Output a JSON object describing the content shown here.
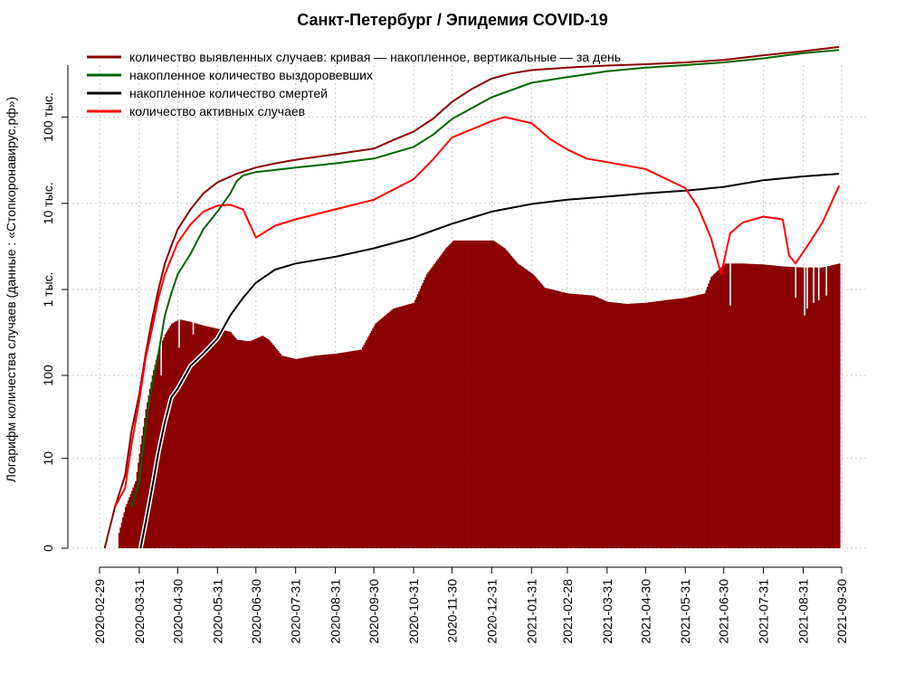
{
  "chart_data": {
    "type": "bar+line",
    "title": "Санкт-Петербург / Эпидемия COVID-19",
    "ylabel": "Логарифм количества случаев (данные : «Стопкоронавирус.рф»)",
    "xlabel": "",
    "yscale": "log10(1+y)",
    "ylim": [
      0,
      400000
    ],
    "xlim": [
      "2020-02-29",
      "2021-09-30"
    ],
    "grid": true,
    "legend_position": "top-left",
    "y_ticks": [
      {
        "value": 0,
        "label": "0"
      },
      {
        "value": 10,
        "label": "10"
      },
      {
        "value": 100,
        "label": "100"
      },
      {
        "value": 1000,
        "label": "1 тыс."
      },
      {
        "value": 10000,
        "label": "10 тыс."
      },
      {
        "value": 100000,
        "label": "100 тыс."
      }
    ],
    "x_ticks": [
      "2020-02-29",
      "2020-03-31",
      "2020-04-30",
      "2020-05-31",
      "2020-06-30",
      "2020-07-31",
      "2020-08-31",
      "2020-09-30",
      "2020-10-31",
      "2020-11-30",
      "2020-12-31",
      "2021-01-31",
      "2021-02-28",
      "2021-03-31",
      "2021-04-30",
      "2021-05-31",
      "2021-06-30",
      "2021-07-31",
      "2021-08-31",
      "2021-09-30"
    ],
    "bars": {
      "name": "количество выявленных случаев: кривая — накопленное, вертикальные — за день",
      "color": "#8B0000",
      "points": [
        [
          "2020-03-12",
          0
        ],
        [
          "2020-03-20",
          2
        ],
        [
          "2020-03-28",
          5
        ],
        [
          "2020-04-01",
          15
        ],
        [
          "2020-04-05",
          40
        ],
        [
          "2020-04-10",
          100
        ],
        [
          "2020-04-15",
          200
        ],
        [
          "2020-04-20",
          300
        ],
        [
          "2020-04-25",
          400
        ],
        [
          "2020-05-01",
          450
        ],
        [
          "2020-05-10",
          420
        ],
        [
          "2020-05-20",
          380
        ],
        [
          "2020-05-31",
          350
        ],
        [
          "2020-06-10",
          320
        ],
        [
          "2020-06-15",
          260
        ],
        [
          "2020-06-25",
          250
        ],
        [
          "2020-07-05",
          290
        ],
        [
          "2020-07-10",
          260
        ],
        [
          "2020-07-20",
          170
        ],
        [
          "2020-07-31",
          155
        ],
        [
          "2020-08-15",
          170
        ],
        [
          "2020-09-01",
          180
        ],
        [
          "2020-09-20",
          200
        ],
        [
          "2020-10-01",
          400
        ],
        [
          "2020-10-15",
          600
        ],
        [
          "2020-10-31",
          700
        ],
        [
          "2020-11-10",
          1500
        ],
        [
          "2020-11-25",
          3000
        ],
        [
          "2020-12-01",
          3700
        ],
        [
          "2021-01-01",
          3700
        ],
        [
          "2021-01-10",
          3000
        ],
        [
          "2021-01-20",
          2000
        ],
        [
          "2021-02-01",
          1500
        ],
        [
          "2021-02-10",
          1050
        ],
        [
          "2021-02-28",
          900
        ],
        [
          "2021-03-20",
          850
        ],
        [
          "2021-03-31",
          720
        ],
        [
          "2021-04-15",
          680
        ],
        [
          "2021-04-30",
          700
        ],
        [
          "2021-05-15",
          750
        ],
        [
          "2021-05-31",
          800
        ],
        [
          "2021-06-15",
          900
        ],
        [
          "2021-06-20",
          1400
        ],
        [
          "2021-07-01",
          2000
        ],
        [
          "2021-07-15",
          2000
        ],
        [
          "2021-07-31",
          1950
        ],
        [
          "2021-08-15",
          1850
        ],
        [
          "2021-08-31",
          1800
        ],
        [
          "2021-09-15",
          1800
        ],
        [
          "2021-09-28",
          2000
        ]
      ],
      "dips": [
        [
          "2020-04-17",
          100
        ],
        [
          "2020-05-01",
          210
        ],
        [
          "2020-05-12",
          300
        ],
        [
          "2021-07-05",
          650
        ],
        [
          "2021-08-25",
          800
        ],
        [
          "2021-09-01",
          500
        ],
        [
          "2021-09-03",
          600
        ],
        [
          "2021-09-08",
          700
        ],
        [
          "2021-09-12",
          750
        ],
        [
          "2021-09-18",
          850
        ]
      ]
    },
    "series": [
      {
        "name": "количество выявленных случаев: кривая — накопленное, вертикальные — за день",
        "color": "#8B0000",
        "points": [
          [
            "2020-03-04",
            0
          ],
          [
            "2020-03-12",
            2
          ],
          [
            "2020-03-20",
            6
          ],
          [
            "2020-03-25",
            22
          ],
          [
            "2020-03-31",
            60
          ],
          [
            "2020-04-05",
            180
          ],
          [
            "2020-04-10",
            450
          ],
          [
            "2020-04-15",
            1000
          ],
          [
            "2020-04-20",
            2000
          ],
          [
            "2020-04-25",
            3200
          ],
          [
            "2020-04-30",
            5000
          ],
          [
            "2020-05-10",
            8500
          ],
          [
            "2020-05-20",
            13000
          ],
          [
            "2020-05-31",
            17500
          ],
          [
            "2020-06-15",
            22000
          ],
          [
            "2020-06-30",
            26000
          ],
          [
            "2020-07-15",
            29000
          ],
          [
            "2020-07-31",
            32000
          ],
          [
            "2020-08-31",
            37000
          ],
          [
            "2020-09-30",
            43000
          ],
          [
            "2020-10-15",
            54000
          ],
          [
            "2020-10-31",
            68000
          ],
          [
            "2020-11-15",
            95000
          ],
          [
            "2020-11-30",
            150000
          ],
          [
            "2020-12-15",
            210000
          ],
          [
            "2020-12-31",
            280000
          ],
          [
            "2021-01-15",
            320000
          ],
          [
            "2021-01-31",
            350000
          ],
          [
            "2021-02-28",
            375000
          ],
          [
            "2021-03-31",
            395000
          ],
          [
            "2021-04-30",
            410000
          ],
          [
            "2021-05-31",
            430000
          ],
          [
            "2021-06-30",
            460000
          ],
          [
            "2021-07-31",
            520000
          ],
          [
            "2021-08-31",
            580000
          ],
          [
            "2021-09-28",
            650000
          ]
        ]
      },
      {
        "name": "накопленное количество выздоровевших",
        "color": "#006400",
        "points": [
          [
            "2020-03-25",
            2
          ],
          [
            "2020-03-31",
            5
          ],
          [
            "2020-04-05",
            25
          ],
          [
            "2020-04-10",
            80
          ],
          [
            "2020-04-15",
            180
          ],
          [
            "2020-04-20",
            500
          ],
          [
            "2020-04-25",
            900
          ],
          [
            "2020-04-30",
            1500
          ],
          [
            "2020-05-10",
            2600
          ],
          [
            "2020-05-20",
            5000
          ],
          [
            "2020-05-31",
            8000
          ],
          [
            "2020-06-10",
            13000
          ],
          [
            "2020-06-15",
            18000
          ],
          [
            "2020-06-20",
            21000
          ],
          [
            "2020-06-30",
            23000
          ],
          [
            "2020-07-31",
            26000
          ],
          [
            "2020-08-31",
            29000
          ],
          [
            "2020-09-30",
            33000
          ],
          [
            "2020-10-31",
            45000
          ],
          [
            "2020-11-15",
            62000
          ],
          [
            "2020-11-30",
            95000
          ],
          [
            "2020-12-31",
            170000
          ],
          [
            "2021-01-31",
            250000
          ],
          [
            "2021-02-28",
            290000
          ],
          [
            "2021-03-31",
            340000
          ],
          [
            "2021-04-30",
            375000
          ],
          [
            "2021-05-31",
            400000
          ],
          [
            "2021-06-30",
            430000
          ],
          [
            "2021-07-31",
            480000
          ],
          [
            "2021-08-31",
            550000
          ],
          [
            "2021-09-28",
            600000
          ]
        ]
      },
      {
        "name": "накопленное количество смертей",
        "color": "#000000",
        "points": [
          [
            "2020-04-01",
            0
          ],
          [
            "2020-04-05",
            1
          ],
          [
            "2020-04-10",
            4
          ],
          [
            "2020-04-15",
            12
          ],
          [
            "2020-04-20",
            28
          ],
          [
            "2020-04-25",
            55
          ],
          [
            "2020-04-30",
            70
          ],
          [
            "2020-05-10",
            130
          ],
          [
            "2020-05-20",
            180
          ],
          [
            "2020-05-31",
            270
          ],
          [
            "2020-06-10",
            500
          ],
          [
            "2020-06-20",
            800
          ],
          [
            "2020-06-30",
            1200
          ],
          [
            "2020-07-15",
            1700
          ],
          [
            "2020-07-31",
            2000
          ],
          [
            "2020-08-31",
            2400
          ],
          [
            "2020-09-30",
            3000
          ],
          [
            "2020-10-31",
            4000
          ],
          [
            "2020-11-30",
            5800
          ],
          [
            "2020-12-31",
            8000
          ],
          [
            "2021-01-31",
            9800
          ],
          [
            "2021-02-28",
            11000
          ],
          [
            "2021-03-31",
            12000
          ],
          [
            "2021-04-30",
            13000
          ],
          [
            "2021-05-31",
            14000
          ],
          [
            "2021-06-30",
            15500
          ],
          [
            "2021-07-31",
            18500
          ],
          [
            "2021-08-31",
            20500
          ],
          [
            "2021-09-28",
            22000
          ]
        ]
      },
      {
        "name": "количество активных случаев",
        "color": "#FF0000",
        "points": [
          [
            "2020-03-12",
            2
          ],
          [
            "2020-03-20",
            4
          ],
          [
            "2020-03-25",
            15
          ],
          [
            "2020-03-31",
            50
          ],
          [
            "2020-04-05",
            160
          ],
          [
            "2020-04-10",
            350
          ],
          [
            "2020-04-15",
            800
          ],
          [
            "2020-04-20",
            1500
          ],
          [
            "2020-04-25",
            2300
          ],
          [
            "2020-04-30",
            3500
          ],
          [
            "2020-05-10",
            5700
          ],
          [
            "2020-05-20",
            8000
          ],
          [
            "2020-05-31",
            9400
          ],
          [
            "2020-06-10",
            9600
          ],
          [
            "2020-06-20",
            8500
          ],
          [
            "2020-06-30",
            4000
          ],
          [
            "2020-07-15",
            5500
          ],
          [
            "2020-07-31",
            6500
          ],
          [
            "2020-08-31",
            8500
          ],
          [
            "2020-09-30",
            11000
          ],
          [
            "2020-10-31",
            19000
          ],
          [
            "2020-11-15",
            32000
          ],
          [
            "2020-11-30",
            58000
          ],
          [
            "2020-12-31",
            90000
          ],
          [
            "2021-01-10",
            100000
          ],
          [
            "2021-01-31",
            85000
          ],
          [
            "2021-02-15",
            55000
          ],
          [
            "2021-02-28",
            42000
          ],
          [
            "2021-03-15",
            33000
          ],
          [
            "2021-03-31",
            30000
          ],
          [
            "2021-04-30",
            25000
          ],
          [
            "2021-05-31",
            15000
          ],
          [
            "2021-06-10",
            9000
          ],
          [
            "2021-06-20",
            4000
          ],
          [
            "2021-06-28",
            1500
          ],
          [
            "2021-07-05",
            4500
          ],
          [
            "2021-07-15",
            6000
          ],
          [
            "2021-07-31",
            7000
          ],
          [
            "2021-08-15",
            6500
          ],
          [
            "2021-08-20",
            2500
          ],
          [
            "2021-08-25",
            2000
          ],
          [
            "2021-09-05",
            3500
          ],
          [
            "2021-09-15",
            6000
          ],
          [
            "2021-09-28",
            16000
          ]
        ]
      }
    ]
  }
}
